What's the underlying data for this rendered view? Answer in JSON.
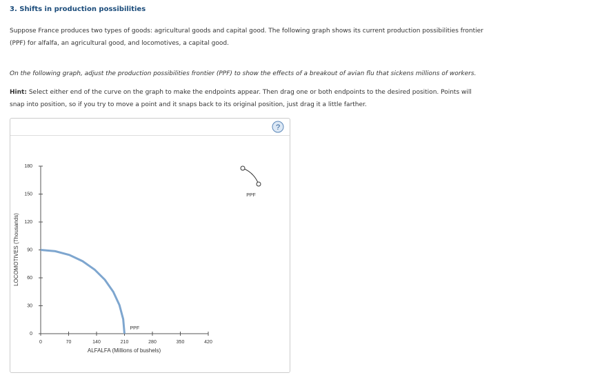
{
  "header": {
    "title": "3. Shifts in production possibilities"
  },
  "intro": "Suppose France produces two types of goods: agricultural goods and capital good. The following graph shows its current production possibilities frontier (PPF) for alfalfa, an agricultural good, and locomotives, a capital good.",
  "instruction": "On the following graph, adjust the production possibilities frontier (PPF) to show the effects of a breakout of avian flu that sickens millions of workers.",
  "hint": {
    "label": "Hint:",
    "text": "Select either end of the curve on the graph to make the endpoints appear. Then drag one or both endpoints to the desired position. Points will snap into position, so if you try to move a point and it snaps back to its original position, just drag it a little farther."
  },
  "help": {
    "icon": "?"
  },
  "tool": {
    "label": "PPF"
  },
  "chart_data": {
    "type": "line",
    "x_label": "ALFALFA (Millions of bushels)",
    "y_label": "LOCOMOTIVES (Thousands)",
    "xlim": [
      0,
      420
    ],
    "ylim": [
      0,
      180
    ],
    "xticks": [
      0,
      70,
      140,
      210,
      280,
      350,
      420
    ],
    "yticks": [
      0,
      30,
      60,
      90,
      120,
      150,
      180
    ],
    "series": [
      {
        "name": "PPF",
        "color": "#7ea6cf",
        "x": [
          0,
          36.5,
          71.8,
          105,
          135,
          160.9,
          181.9,
          197.3,
          206.8,
          210
        ],
        "values": [
          90,
          88.6,
          84.6,
          77.9,
          68.9,
          57.9,
          45,
          30.8,
          15.6,
          0
        ]
      }
    ]
  }
}
